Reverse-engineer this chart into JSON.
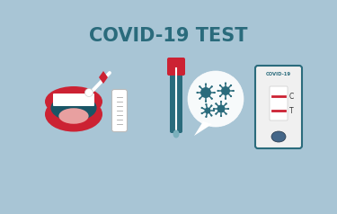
{
  "bg_color": "#ffffff",
  "blob_color": "#a8c5d5",
  "title": "COVID-19 TEST",
  "title_color": "#2a6b7c",
  "title_fontsize": 15,
  "mouth_outer_color": "#cc2233",
  "mouth_inner_color": "#1a5566",
  "tongue_color": "#e8a0a0",
  "swab_diamond_color": "#cc2233",
  "tube_body_color": "#2a6b7c",
  "tube_cap_color": "#cc2233",
  "virus_color": "#2a6b7c",
  "test_card_bg": "#f0f0f0",
  "test_card_border": "#2a6b7c",
  "test_line_c_color": "#cc2233",
  "test_line_t_color": "#cc2233",
  "test_sample_color": "#446688",
  "label_color": "#333333"
}
